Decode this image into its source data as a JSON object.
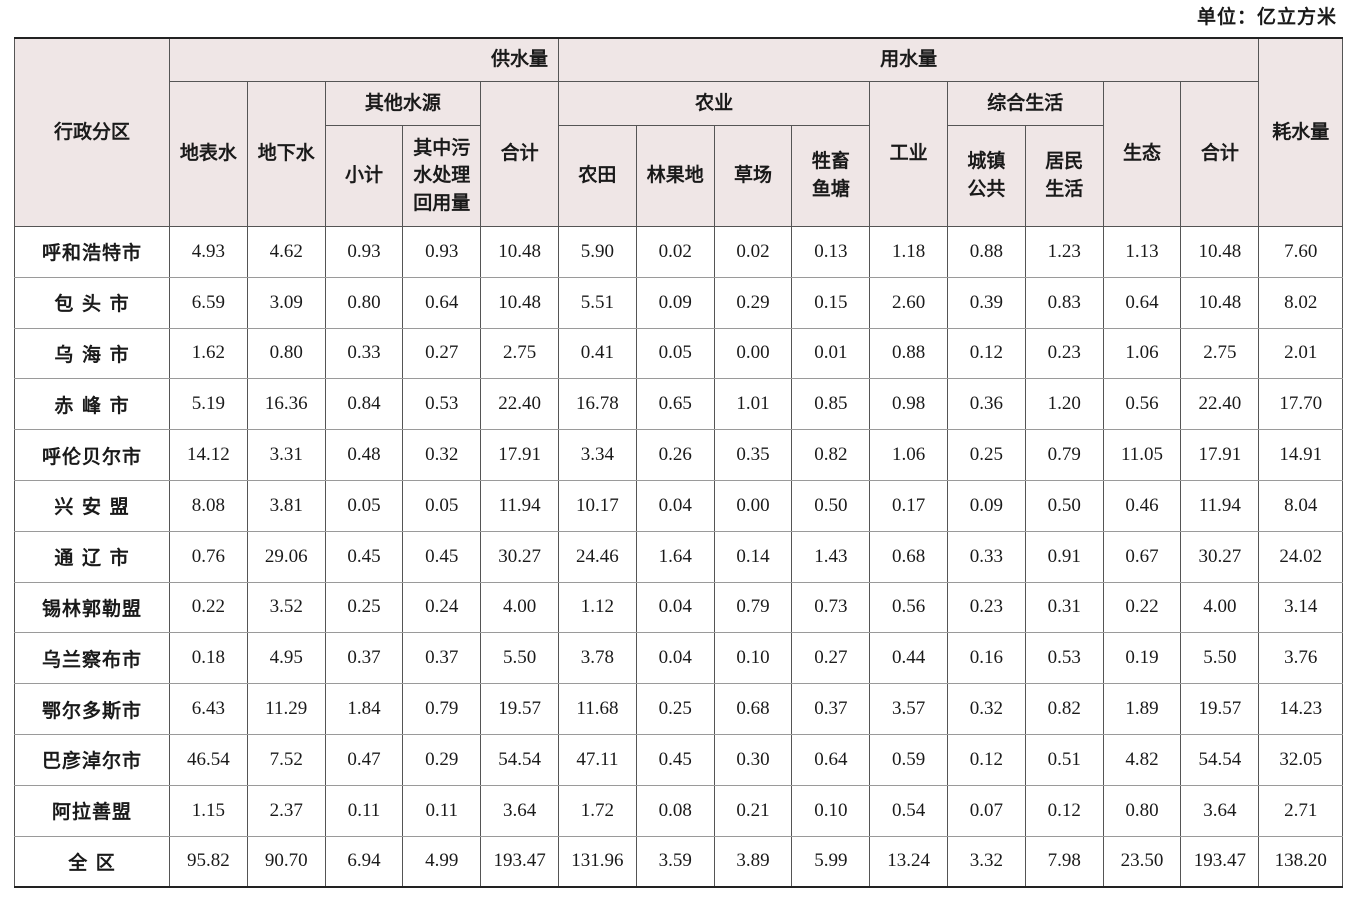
{
  "unit_label": "单位：亿立方米",
  "headers": {
    "region": "行政分区",
    "supply": "供水量",
    "use": "用水量",
    "consumption": "耗水量",
    "surface": "地表水",
    "ground": "地下水",
    "other": "其他水源",
    "other_subtotal": "小计",
    "other_reuse": "其中污\n水处理\n回用量",
    "supply_total": "合计",
    "agriculture": "农业",
    "farmland": "农田",
    "forest_fruit": "林果地",
    "grassland": "草场",
    "livestock": "牲畜\n鱼塘",
    "industry": "工业",
    "domestic": "综合生活",
    "urban_public": "城镇\n公共",
    "residential": "居民\n生活",
    "ecology": "生态",
    "use_total": "合计"
  },
  "rows": [
    {
      "region": "呼和浩特市",
      "values": [
        "4.93",
        "4.62",
        "0.93",
        "0.93",
        "10.48",
        "5.90",
        "0.02",
        "0.02",
        "0.13",
        "1.18",
        "0.88",
        "1.23",
        "1.13",
        "10.48",
        "7.60"
      ]
    },
    {
      "region": "包 头 市",
      "values": [
        "6.59",
        "3.09",
        "0.80",
        "0.64",
        "10.48",
        "5.51",
        "0.09",
        "0.29",
        "0.15",
        "2.60",
        "0.39",
        "0.83",
        "0.64",
        "10.48",
        "8.02"
      ]
    },
    {
      "region": "乌 海 市",
      "values": [
        "1.62",
        "0.80",
        "0.33",
        "0.27",
        "2.75",
        "0.41",
        "0.05",
        "0.00",
        "0.01",
        "0.88",
        "0.12",
        "0.23",
        "1.06",
        "2.75",
        "2.01"
      ]
    },
    {
      "region": "赤 峰 市",
      "values": [
        "5.19",
        "16.36",
        "0.84",
        "0.53",
        "22.40",
        "16.78",
        "0.65",
        "1.01",
        "0.85",
        "0.98",
        "0.36",
        "1.20",
        "0.56",
        "22.40",
        "17.70"
      ]
    },
    {
      "region": "呼伦贝尔市",
      "values": [
        "14.12",
        "3.31",
        "0.48",
        "0.32",
        "17.91",
        "3.34",
        "0.26",
        "0.35",
        "0.82",
        "1.06",
        "0.25",
        "0.79",
        "11.05",
        "17.91",
        "14.91"
      ]
    },
    {
      "region": "兴 安 盟",
      "values": [
        "8.08",
        "3.81",
        "0.05",
        "0.05",
        "11.94",
        "10.17",
        "0.04",
        "0.00",
        "0.50",
        "0.17",
        "0.09",
        "0.50",
        "0.46",
        "11.94",
        "8.04"
      ]
    },
    {
      "region": "通 辽 市",
      "values": [
        "0.76",
        "29.06",
        "0.45",
        "0.45",
        "30.27",
        "24.46",
        "1.64",
        "0.14",
        "1.43",
        "0.68",
        "0.33",
        "0.91",
        "0.67",
        "30.27",
        "24.02"
      ]
    },
    {
      "region": "锡林郭勒盟",
      "values": [
        "0.22",
        "3.52",
        "0.25",
        "0.24",
        "4.00",
        "1.12",
        "0.04",
        "0.79",
        "0.73",
        "0.56",
        "0.23",
        "0.31",
        "0.22",
        "4.00",
        "3.14"
      ]
    },
    {
      "region": "乌兰察布市",
      "values": [
        "0.18",
        "4.95",
        "0.37",
        "0.37",
        "5.50",
        "3.78",
        "0.04",
        "0.10",
        "0.27",
        "0.44",
        "0.16",
        "0.53",
        "0.19",
        "5.50",
        "3.76"
      ]
    },
    {
      "region": "鄂尔多斯市",
      "values": [
        "6.43",
        "11.29",
        "1.84",
        "0.79",
        "19.57",
        "11.68",
        "0.25",
        "0.68",
        "0.37",
        "3.57",
        "0.32",
        "0.82",
        "1.89",
        "19.57",
        "14.23"
      ]
    },
    {
      "region": "巴彦淖尔市",
      "values": [
        "46.54",
        "7.52",
        "0.47",
        "0.29",
        "54.54",
        "47.11",
        "0.45",
        "0.30",
        "0.64",
        "0.59",
        "0.12",
        "0.51",
        "4.82",
        "54.54",
        "32.05"
      ]
    },
    {
      "region": "阿拉善盟",
      "values": [
        "1.15",
        "2.37",
        "0.11",
        "0.11",
        "3.64",
        "1.72",
        "0.08",
        "0.21",
        "0.10",
        "0.54",
        "0.07",
        "0.12",
        "0.80",
        "3.64",
        "2.71"
      ]
    },
    {
      "region": "全 区",
      "values": [
        "95.82",
        "90.70",
        "6.94",
        "4.99",
        "193.47",
        "131.96",
        "3.59",
        "3.89",
        "5.99",
        "13.24",
        "3.32",
        "7.98",
        "23.50",
        "193.47",
        "138.20"
      ]
    }
  ]
}
